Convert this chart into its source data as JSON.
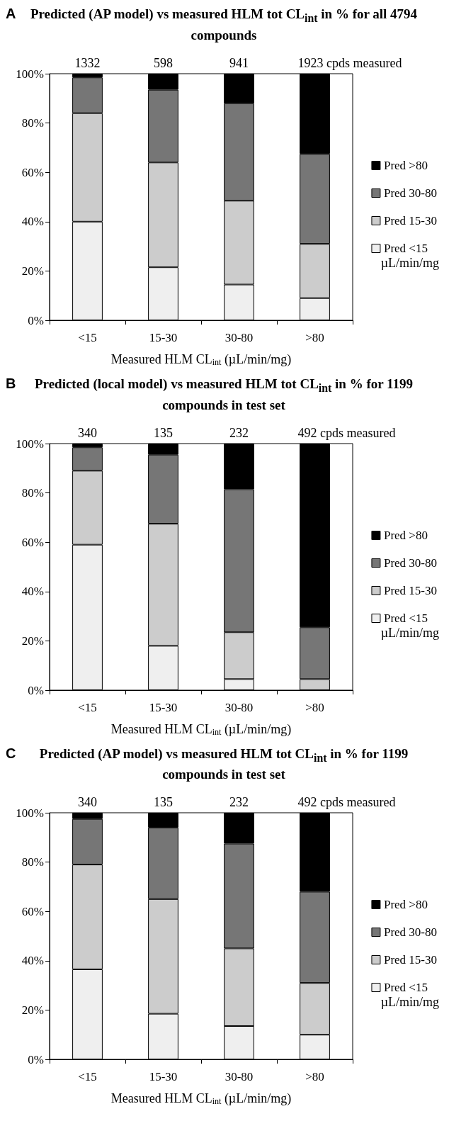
{
  "chart_data": [
    {
      "type": "bar",
      "title": "Predicted (AP model) vs measured HLM tot CL$_{int}$ in % for all 4794 compounds",
      "xlabel": "Measured HLM CL$_{int}$ (µL/min/mg)",
      "categories": [
        "<15",
        "15-30",
        "30-80",
        ">80"
      ],
      "stacked": true,
      "legend": "right",
      "grid": false,
      "ylim": [
        0,
        100
      ],
      "yticks": [
        {
          "value": 0,
          "label": "0%"
        },
        {
          "value": 20,
          "label": "20%"
        },
        {
          "value": 40,
          "label": "40%"
        },
        {
          "value": 60,
          "label": "60%"
        },
        {
          "value": 80,
          "label": "80%"
        },
        {
          "value": 100,
          "label": "100%"
        }
      ],
      "series": [
        {
          "name": "Pred <15",
          "color": "#efefef",
          "values": [
            40,
            21.5,
            14.5,
            9
          ]
        },
        {
          "name": "Pred 15-30",
          "color": "#cccccc",
          "values": [
            44,
            42.5,
            34,
            22
          ]
        },
        {
          "name": "Pred 30-80",
          "color": "#767676",
          "values": [
            14.5,
            29.5,
            39.5,
            36.5
          ]
        },
        {
          "name": "Pred >80",
          "color": "#000000",
          "values": [
            1.5,
            6.5,
            12,
            32.5
          ]
        }
      ],
      "annotations": [
        "A",
        "µL/min/mg",
        {
          "text": "1332",
          "x": "<15",
          "y": 100
        },
        {
          "text": "598",
          "x": "15-30",
          "y": 100
        },
        {
          "text": "941",
          "x": "30-80",
          "y": 100
        },
        {
          "text": "1923 cpds measured",
          "x": ">80",
          "y": 100
        }
      ]
    },
    {
      "type": "bar",
      "title": "Predicted (local model) vs measured HLM tot CL$_{int}$ in % for 1199 compounds in test set",
      "xlabel": "Measured HLM CL$_{int}$ (µL/min/mg)",
      "categories": [
        "<15",
        "15-30",
        "30-80",
        ">80"
      ],
      "stacked": true,
      "legend": "right",
      "grid": false,
      "ylim": [
        0,
        100
      ],
      "yticks": [
        {
          "value": 0,
          "label": "0%"
        },
        {
          "value": 20,
          "label": "20%"
        },
        {
          "value": 40,
          "label": "40%"
        },
        {
          "value": 60,
          "label": "60%"
        },
        {
          "value": 80,
          "label": "80%"
        },
        {
          "value": 100,
          "label": "100%"
        }
      ],
      "series": [
        {
          "name": "Pred <15",
          "color": "#efefef",
          "values": [
            59,
            18,
            4.5,
            0
          ]
        },
        {
          "name": "Pred 15-30",
          "color": "#cccccc",
          "values": [
            30,
            49.5,
            19,
            4.5
          ]
        },
        {
          "name": "Pred 30-80",
          "color": "#767676",
          "values": [
            9.5,
            28,
            58,
            21
          ]
        },
        {
          "name": "Pred >80",
          "color": "#000000",
          "values": [
            1.5,
            4.5,
            18.5,
            74.5
          ]
        }
      ],
      "annotations": [
        "B",
        "µL/min/mg",
        {
          "text": "340",
          "x": "<15",
          "y": 100
        },
        {
          "text": "135",
          "x": "15-30",
          "y": 100
        },
        {
          "text": "232",
          "x": "30-80",
          "y": 100
        },
        {
          "text": "492 cpds measured",
          "x": ">80",
          "y": 100
        }
      ]
    },
    {
      "type": "bar",
      "title": "Predicted (AP model) vs measured HLM tot CL$_{int}$ in % for 1199 compounds in test set",
      "xlabel": "Measured HLM CL$_{int}$ (µL/min/mg)",
      "categories": [
        "<15",
        "15-30",
        "30-80",
        ">80"
      ],
      "stacked": true,
      "legend": "right",
      "grid": false,
      "ylim": [
        0,
        100
      ],
      "yticks": [
        {
          "value": 0,
          "label": "0%"
        },
        {
          "value": 20,
          "label": "20%"
        },
        {
          "value": 40,
          "label": "40%"
        },
        {
          "value": 60,
          "label": "60%"
        },
        {
          "value": 80,
          "label": "80%"
        },
        {
          "value": 100,
          "label": "100%"
        }
      ],
      "series": [
        {
          "name": "Pred <15",
          "color": "#efefef",
          "values": [
            36.5,
            18.5,
            13.5,
            10
          ]
        },
        {
          "name": "Pred 15-30",
          "color": "#cccccc",
          "values": [
            42.5,
            46.5,
            31.5,
            21
          ]
        },
        {
          "name": "Pred 30-80",
          "color": "#767676",
          "values": [
            18.5,
            29,
            42.5,
            37
          ]
        },
        {
          "name": "Pred >80",
          "color": "#000000",
          "values": [
            2.5,
            6,
            12.5,
            32
          ]
        }
      ],
      "annotations": [
        "C",
        "µL/min/mg",
        {
          "text": "340",
          "x": "<15",
          "y": 100
        },
        {
          "text": "135",
          "x": "15-30",
          "y": 100
        },
        {
          "text": "232",
          "x": "30-80",
          "y": 100
        },
        {
          "text": "492 cpds measured",
          "x": ">80",
          "y": 100
        }
      ]
    }
  ]
}
